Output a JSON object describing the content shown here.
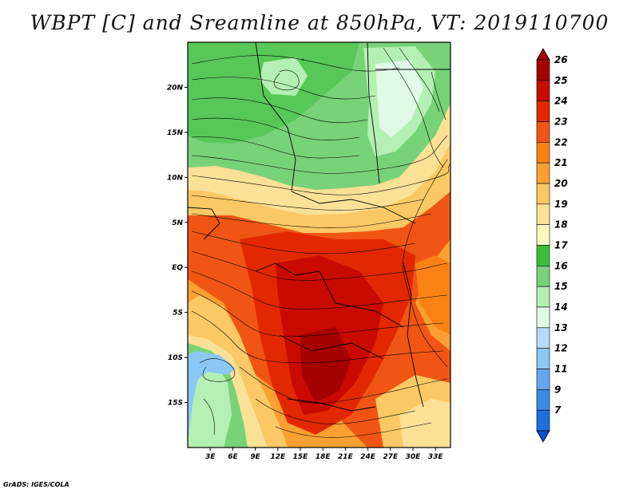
{
  "title": "WBPT [C] and Sreamline at 850hPa, VT: 2019110700",
  "credit": "GrADS: IGES/COLA",
  "map": {
    "lat_range": [
      -20,
      25
    ],
    "lon_range": [
      0,
      35
    ],
    "lat_ticks": [
      {
        "value": 20,
        "label": "20N"
      },
      {
        "value": 15,
        "label": "15N"
      },
      {
        "value": 10,
        "label": "10N"
      },
      {
        "value": 5,
        "label": "5N"
      },
      {
        "value": 0,
        "label": "EQ"
      },
      {
        "value": -5,
        "label": "5S"
      },
      {
        "value": -10,
        "label": "10S"
      },
      {
        "value": -15,
        "label": "15S"
      }
    ],
    "lon_ticks": [
      {
        "value": 3,
        "label": "3E"
      },
      {
        "value": 6,
        "label": "6E"
      },
      {
        "value": 9,
        "label": "9E"
      },
      {
        "value": 12,
        "label": "12E"
      },
      {
        "value": 15,
        "label": "15E"
      },
      {
        "value": 18,
        "label": "18E"
      },
      {
        "value": 21,
        "label": "21E"
      },
      {
        "value": 24,
        "label": "24E"
      },
      {
        "value": 27,
        "label": "27E"
      },
      {
        "value": 30,
        "label": "30E"
      },
      {
        "value": 33,
        "label": "33E"
      }
    ]
  },
  "colorbar": {
    "levels": [
      {
        "label": "26",
        "color": "#a50000"
      },
      {
        "label": "25",
        "color": "#c80a00"
      },
      {
        "label": "24",
        "color": "#e22800"
      },
      {
        "label": "23",
        "color": "#f05514"
      },
      {
        "label": "22",
        "color": "#fa8214"
      },
      {
        "label": "21",
        "color": "#faa032"
      },
      {
        "label": "20",
        "color": "#fac864"
      },
      {
        "label": "19",
        "color": "#fae196"
      },
      {
        "label": "18",
        "color": "#fafabe"
      },
      {
        "label": "17",
        "color": "#3cbe3c"
      },
      {
        "label": "16",
        "color": "#78d278"
      },
      {
        "label": "15",
        "color": "#b4f0b4"
      },
      {
        "label": "14",
        "color": "#e1fae6"
      },
      {
        "label": "13",
        "color": "#b4dcfa"
      },
      {
        "label": "12",
        "color": "#8cc8f5"
      },
      {
        "label": "11",
        "color": "#64a5f0"
      },
      {
        "label": "9",
        "color": "#3c8ce6"
      },
      {
        "label": "7",
        "color": "#1e6edc"
      }
    ],
    "bottom_color": "#0a50d2"
  }
}
